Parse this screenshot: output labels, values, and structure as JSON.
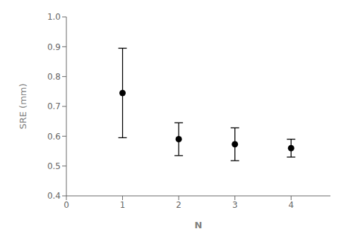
{
  "chart_data": {
    "type": "scatter",
    "x": [
      1,
      2,
      3,
      4
    ],
    "values": [
      0.745,
      0.59,
      0.573,
      0.56
    ],
    "yerr": [
      0.15,
      0.055,
      0.055,
      0.03
    ],
    "xlabel": "N",
    "ylabel": "SRE (mm)",
    "xlim": [
      0,
      4.7
    ],
    "ylim": [
      0.4,
      1.0
    ],
    "xticks": [
      0,
      1,
      2,
      3,
      4
    ],
    "yticks": [
      0.4,
      0.5,
      0.6,
      0.7,
      0.8,
      0.9,
      {
        "value": 1,
        "label": "1.0"
      }
    ],
    "color": "#000000",
    "marker": "circle",
    "grid": false
  }
}
